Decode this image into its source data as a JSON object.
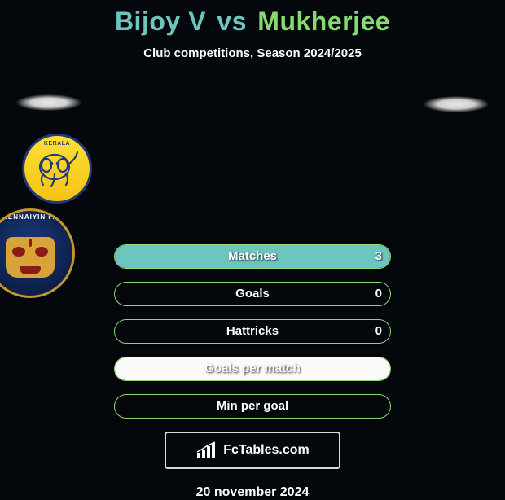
{
  "title": {
    "player1": "Bijoy V",
    "vs": "vs",
    "player2": "Mukherjee"
  },
  "subtitle": "Club competitions, Season 2024/2025",
  "colors": {
    "player1_accent": "#6cc5bf",
    "player2_accent": "#88d970",
    "bar_border": "#88d970",
    "bar_fill": "#6cc5bf",
    "bar_special_fill": "#fafafa"
  },
  "stats": [
    {
      "label": "Matches",
      "value_left": "3",
      "fill_pct": 100,
      "fill_color": "#6cc5bf",
      "border_color": "#88d970"
    },
    {
      "label": "Goals",
      "value_left": "0",
      "fill_pct": 0,
      "fill_color": "#6cc5bf",
      "border_color": "#88d970"
    },
    {
      "label": "Hattricks",
      "value_left": "0",
      "fill_pct": 0,
      "fill_color": "#6cc5bf",
      "border_color": "#88d970"
    },
    {
      "label": "Goals per match",
      "value_left": "",
      "fill_pct": 100,
      "fill_color": "#fafafa",
      "border_color": "#88d970"
    },
    {
      "label": "Min per goal",
      "value_left": "",
      "fill_pct": 0,
      "fill_color": "#6cc5bf",
      "border_color": "#88d970"
    }
  ],
  "clubs": {
    "left": {
      "name": "Kerala Blasters",
      "label": "KERALA"
    },
    "right": {
      "name": "Chennaiyin FC",
      "label": "CHENNAIYIN F.C."
    }
  },
  "attribution": "FcTables.com",
  "date": "20 november 2024"
}
